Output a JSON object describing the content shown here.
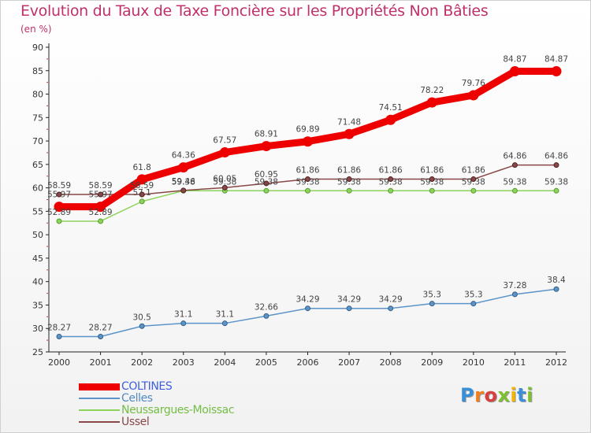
{
  "title": "Evolution du Taux de Taxe Foncière sur les Propriétés Non Bâties",
  "unit": "(en %)",
  "colors": {
    "title": "#c0306a",
    "coltines": "#ee0000",
    "celles": "#5b94c9",
    "neussargues": "#8cd35a",
    "ussel": "#8a4747"
  },
  "logo": {
    "letters": [
      "P",
      "r",
      "o",
      "x",
      "i",
      "t",
      "i"
    ],
    "colors": [
      "#3a8fd9",
      "#f07f1e",
      "#d83f3f",
      "#7dbf31",
      "#f5b400",
      "#3a8fd9",
      "#7dbf31"
    ]
  },
  "chart_data": {
    "type": "line",
    "title": "Evolution du Taux de Taxe Foncière sur les Propriétés Non Bâties",
    "ylabel": "(en %)",
    "categories": [
      "2000",
      "2001",
      "2002",
      "2003",
      "2004",
      "2005",
      "2006",
      "2007",
      "2008",
      "2009",
      "2010",
      "2011",
      "2012"
    ],
    "ylim": [
      25,
      90
    ],
    "yticks": [
      25,
      30,
      35,
      40,
      45,
      50,
      55,
      60,
      65,
      70,
      75,
      80,
      85,
      90
    ],
    "grid": false,
    "legend_position": "bottom-left",
    "series": [
      {
        "name": "COLTINES",
        "values": [
          55.97,
          55.97,
          61.8,
          64.36,
          67.57,
          68.91,
          69.89,
          71.48,
          74.51,
          78.22,
          79.76,
          84.87,
          84.87
        ],
        "labels": [
          "55.97",
          "55.97",
          "61.8",
          "64.36",
          "67.57",
          "68.91",
          "69.89",
          "71.48",
          "74.51",
          "78.22",
          "79.76",
          "84.87",
          "84.87"
        ]
      },
      {
        "name": "Celles",
        "values": [
          28.27,
          28.27,
          30.5,
          31.1,
          31.1,
          32.66,
          34.29,
          34.29,
          34.29,
          35.3,
          35.3,
          37.28,
          38.4
        ],
        "labels": [
          "28.27",
          "28.27",
          "30.5",
          "31.1",
          "31.1",
          "32.66",
          "34.29",
          "34.29",
          "34.29",
          "35.3",
          "35.3",
          "37.28",
          "38.4"
        ]
      },
      {
        "name": "Neussargues-Moissac",
        "values": [
          52.89,
          52.89,
          57.1,
          59.38,
          59.38,
          59.38,
          59.38,
          59.38,
          59.38,
          59.38,
          59.38,
          59.38,
          59.38
        ],
        "labels": [
          "52.89",
          "52.89",
          "57.1",
          "59.38",
          "59.38",
          "59.38",
          "59.38",
          "59.38",
          "59.38",
          "59.38",
          "59.38",
          "59.38",
          "59.38"
        ]
      },
      {
        "name": "Ussel",
        "values": [
          58.59,
          58.59,
          58.59,
          59.46,
          60.05,
          60.95,
          61.86,
          61.86,
          61.86,
          61.86,
          61.86,
          64.86,
          64.86
        ],
        "labels": [
          "58.59",
          "58.59",
          "58.59",
          "59.46",
          "60.05",
          "60.95",
          "61.86",
          "61.86",
          "61.86",
          "61.86",
          "61.86",
          "64.86",
          "64.86"
        ]
      }
    ]
  }
}
